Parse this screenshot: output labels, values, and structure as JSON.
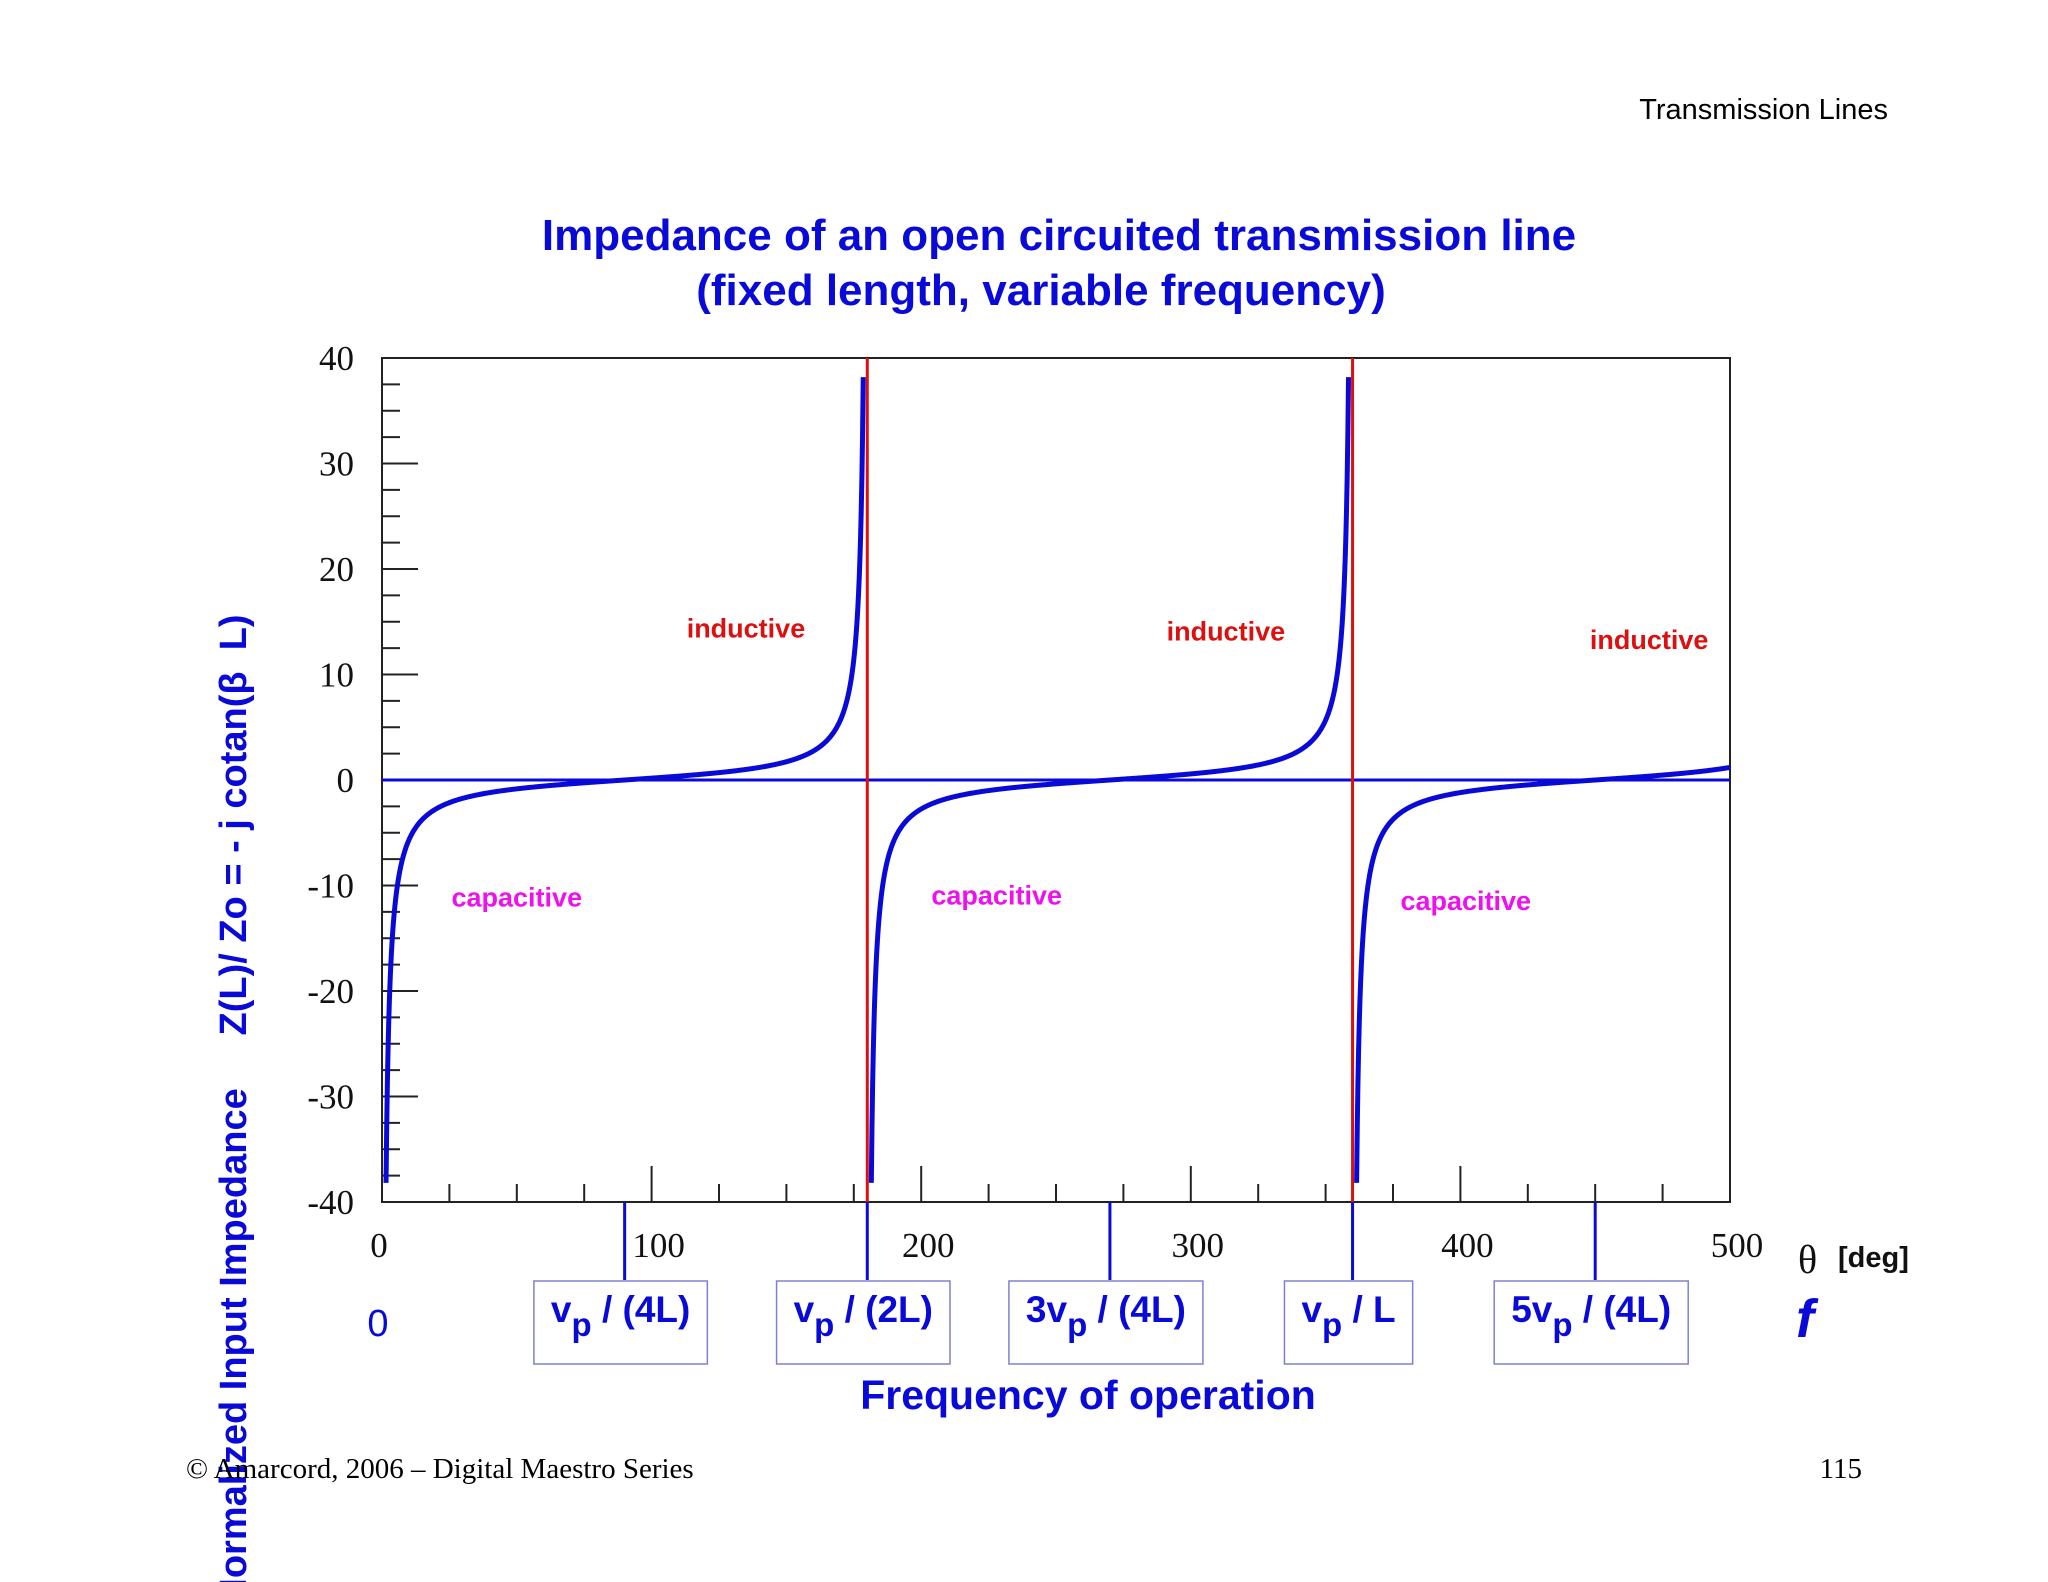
{
  "header": {
    "title": "Transmission Lines"
  },
  "footer": {
    "copyright": "© Amarcord, 2006 – Digital Maestro Series",
    "page_number": "115"
  },
  "colors": {
    "accent": "#0a0ad8",
    "asymptote": "#dd1010",
    "inductive": "#dd1010",
    "capacitive": "#ee11ee"
  },
  "chart_data": {
    "type": "line",
    "title_line1": "Impedance of an open circuited transmission line",
    "title_line2": "(fixed length, variable frequency)",
    "ylabel": "Normalized Input Impedance     Z(L)/ Zo = - j cotan(β  L)",
    "xlabel": "Frequency of operation",
    "x_unit_symbol": "θ",
    "x_unit": "[deg]",
    "f_symbol": "f",
    "f_zero_label": "0",
    "xlim": [
      0,
      500
    ],
    "ylim": [
      -40,
      40
    ],
    "x_ticks": [
      0,
      100,
      200,
      300,
      400,
      500
    ],
    "y_ticks": [
      40,
      30,
      20,
      10,
      0,
      -10,
      -20,
      -30,
      -40
    ],
    "x_tick_labels": [
      "0",
      "100",
      "200",
      "300",
      "400",
      "500"
    ],
    "y_tick_labels": [
      "40",
      "30",
      "20",
      "10",
      "0",
      "-10",
      "-20",
      "-30",
      "-40"
    ],
    "series": [
      {
        "function": "-cot(theta)",
        "domain": [
          0,
          500
        ]
      }
    ],
    "asymptotes_x": [
      180,
      360
    ],
    "frequency_markers": [
      {
        "x": 90,
        "base": "v",
        "sub": "p",
        "rest": " / (4L)"
      },
      {
        "x": 180,
        "base": "v",
        "sub": "p",
        "rest": " / (2L)"
      },
      {
        "x": 270,
        "base": "3v",
        "sub": "p",
        "rest": " / (4L)"
      },
      {
        "x": 360,
        "base": "v",
        "sub": "p",
        "rest": " / L"
      },
      {
        "x": 450,
        "base": "5v",
        "sub": "p",
        "rest": " / (4L)"
      }
    ],
    "region_labels": [
      {
        "text": "inductive",
        "kind": "inductive",
        "x": 135,
        "y": 13.5
      },
      {
        "text": "inductive",
        "kind": "inductive",
        "x": 313,
        "y": 13.2
      },
      {
        "text": "inductive",
        "kind": "inductive",
        "x": 470,
        "y": 12.4
      },
      {
        "text": "capacitive",
        "kind": "capacitive",
        "x": 50,
        "y": -12.0
      },
      {
        "text": "capacitive",
        "kind": "capacitive",
        "x": 228,
        "y": -11.8
      },
      {
        "text": "capacitive",
        "kind": "capacitive",
        "x": 402,
        "y": -12.3
      }
    ]
  }
}
